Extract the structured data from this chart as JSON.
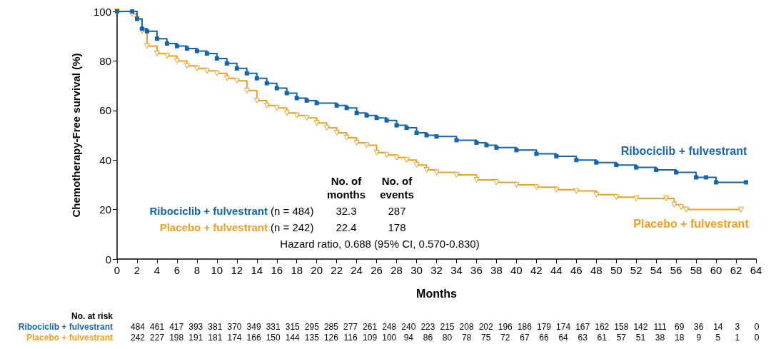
{
  "chart_data": {
    "type": "step",
    "xlabel": "Months",
    "ylabel": "Chemotherapy-Free survival (%)",
    "xlim": [
      0,
      64
    ],
    "xticks": [
      0,
      2,
      4,
      6,
      8,
      10,
      12,
      14,
      16,
      18,
      20,
      22,
      24,
      26,
      28,
      30,
      32,
      34,
      36,
      38,
      40,
      42,
      44,
      46,
      48,
      50,
      52,
      54,
      56,
      58,
      60,
      62,
      64
    ],
    "ylim": [
      0,
      100
    ],
    "yticks": [
      0,
      20,
      40,
      60,
      80,
      100
    ],
    "grid": false,
    "legend": false,
    "series": [
      {
        "name": "Ribociclib + fulvestrant",
        "color": "#1565ad",
        "marker": "square",
        "x": [
          0,
          1.5,
          2,
          2.5,
          3,
          4,
          5,
          6,
          7,
          8,
          9,
          10,
          11,
          12,
          13,
          14,
          15,
          16,
          17,
          18,
          19,
          20,
          22,
          23,
          24,
          25,
          26,
          27,
          28,
          29,
          30,
          31,
          32,
          34,
          36,
          37,
          38,
          40,
          42,
          44,
          46,
          48,
          50,
          52,
          54,
          56,
          58,
          59,
          60,
          63
        ],
        "values": [
          100,
          100,
          97,
          93,
          92,
          89,
          87,
          86,
          85,
          84,
          83,
          81,
          79,
          77,
          75,
          73,
          71,
          69,
          67,
          65,
          64,
          63,
          62,
          61,
          59,
          58,
          57,
          56,
          54,
          53,
          51,
          50,
          49.5,
          48,
          47,
          46,
          45,
          44,
          42.5,
          41.5,
          40,
          39,
          38,
          37,
          36,
          35,
          33,
          33,
          31,
          31
        ]
      },
      {
        "name": "Placebo + fulvestrant",
        "color": "#f0a020",
        "marker": "triangle",
        "x": [
          0,
          1.5,
          2,
          2.5,
          3,
          4,
          5,
          6,
          7,
          8,
          9,
          10,
          11,
          12,
          13,
          14,
          15,
          16,
          17,
          18,
          19,
          20,
          21,
          22,
          23,
          24,
          25,
          26,
          27,
          28,
          29,
          30,
          31,
          32,
          34,
          36,
          38,
          40,
          42,
          44,
          46,
          48,
          50,
          52,
          55,
          55.8,
          56.5,
          57,
          62.5
        ],
        "values": [
          100,
          99,
          97,
          92,
          86,
          83,
          82,
          80,
          78,
          77,
          76,
          75,
          73,
          72,
          68,
          64,
          62,
          61,
          59,
          58,
          57,
          55,
          53,
          51,
          49,
          47,
          46,
          43,
          42,
          41,
          40,
          38,
          36,
          35,
          34,
          32,
          31,
          30,
          29,
          28,
          27.5,
          26,
          25,
          24.5,
          24.5,
          22,
          21,
          20,
          20
        ]
      }
    ],
    "annotations": [
      "No. of months",
      "No. of events",
      "(n = 484)",
      "32.3",
      "287",
      "(n = 242)",
      "22.4",
      "178",
      "Hazard ratio, 0.688 (95% CI, 0.570-0.830)",
      "No. at risk",
      "484 461 417 393 381 370 349 331 315 295 285 277 261 248 240 223 215 208 202 196 186 179 174 167 162 158 142 111 69 36 14 3 0",
      "242 227 198 191 181 174 166 150 144 135 126 116 109 100 94 86 80 78 75 72 67 66 64 63 61 57 51 38 18 9 5 1 0"
    ]
  }
}
